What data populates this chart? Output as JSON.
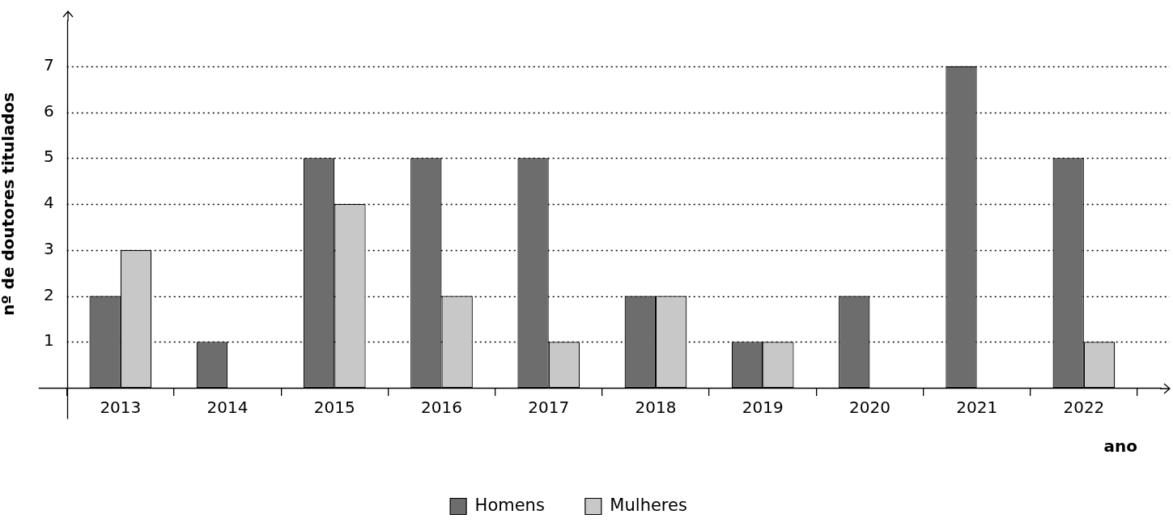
{
  "chart_data": {
    "type": "bar",
    "categories": [
      "2013",
      "2014",
      "2015",
      "2016",
      "2017",
      "2018",
      "2019",
      "2020",
      "2021",
      "2022"
    ],
    "series": [
      {
        "name": "Homens",
        "color": "#6d6d6d",
        "values": [
          2,
          1,
          5,
          5,
          5,
          2,
          1,
          2,
          7,
          5
        ]
      },
      {
        "name": "Mulheres",
        "color": "#c8c8c8",
        "values": [
          3,
          null,
          4,
          2,
          1,
          2,
          1,
          null,
          null,
          1
        ]
      }
    ],
    "xlabel": "ano",
    "ylabel": "nº de doutores titulados",
    "ylim": [
      0,
      8
    ],
    "yticks": [
      1,
      2,
      3,
      4,
      5,
      6,
      7
    ],
    "grid": "y",
    "legend": "bottom"
  }
}
